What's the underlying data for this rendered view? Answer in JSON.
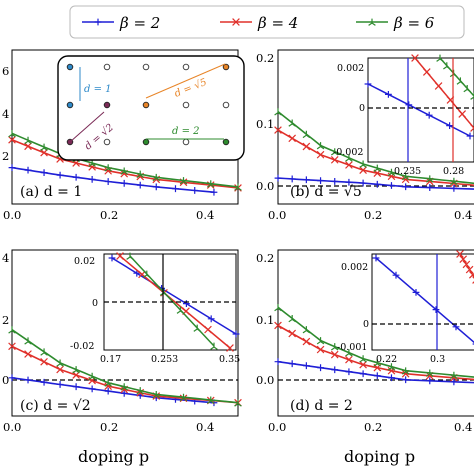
{
  "colors": {
    "beta2": "#1f1fd6",
    "beta4": "#e0302a",
    "beta6": "#2e8b2e",
    "mapblue": "#2f8ac9",
    "maporange": "#e88528",
    "mappurple": "#7a2a56",
    "mapgreen": "#2e8b2e"
  },
  "legend": {
    "entries": [
      "β = 2",
      "β = 4",
      "β = 6"
    ]
  },
  "xlabel_left": "doping p",
  "xlabel_right": "doping p",
  "panels": {
    "a": {
      "label": "(a) d = 1"
    },
    "b": {
      "label": "(b) d = √5"
    },
    "c": {
      "label": "(c) d = √2"
    },
    "d": {
      "label": "(d) d = 2"
    }
  },
  "lattice_inset": {
    "labels": [
      "d = 1",
      "d = √5",
      "d = √2",
      "d = 2"
    ]
  },
  "chart_data": [
    {
      "type": "line",
      "panel": "a",
      "title": "(a) d = 1",
      "x_ticks": [
        "0.0",
        "0.2",
        "0.4"
      ],
      "y_ticks": [
        "2",
        "4",
        "6"
      ],
      "xlim": [
        0,
        0.47
      ],
      "series": [
        {
          "name": "β = 2",
          "x": [
            0.0,
            0.1,
            0.2,
            0.3,
            0.42
          ],
          "y": [
            1.7,
            1.35,
            1.05,
            0.8,
            0.55
          ]
        },
        {
          "name": "β = 4",
          "x": [
            0.0,
            0.1,
            0.2,
            0.3,
            0.47
          ],
          "y": [
            3.0,
            2.1,
            1.55,
            1.15,
            0.75
          ]
        },
        {
          "name": "β = 6",
          "x": [
            0.0,
            0.1,
            0.2,
            0.3,
            0.47
          ],
          "y": [
            3.3,
            2.35,
            1.7,
            1.25,
            0.8
          ]
        }
      ]
    },
    {
      "type": "line",
      "panel": "b",
      "title": "(b) d = √5",
      "x_ticks": [
        "0.0",
        "0.2",
        "0.4"
      ],
      "y_ticks": [
        "0.0",
        "0.1",
        "0.2"
      ],
      "xlim": [
        0,
        0.47
      ],
      "series": [
        {
          "name": "β = 2",
          "x": [
            0.0,
            0.1,
            0.2,
            0.3,
            0.47
          ],
          "y": [
            0.012,
            0.008,
            0.004,
            -0.002,
            -0.006
          ]
        },
        {
          "name": "β = 4",
          "x": [
            0.0,
            0.1,
            0.2,
            0.3,
            0.47
          ],
          "y": [
            0.09,
            0.05,
            0.025,
            0.01,
            0.0
          ]
        },
        {
          "name": "β = 6",
          "x": [
            0.0,
            0.1,
            0.2,
            0.3,
            0.47
          ],
          "y": [
            0.12,
            0.065,
            0.035,
            0.015,
            0.003
          ]
        }
      ],
      "inset": {
        "x_ticks": [
          "0.235",
          "0.28"
        ],
        "y_ticks": [
          "0.002",
          "0",
          "-0.002"
        ],
        "vlines": [
          0.235,
          0.28
        ]
      }
    },
    {
      "type": "line",
      "panel": "c",
      "title": "(c) d = √2",
      "x_ticks": [
        "0.0",
        "0.2",
        "0.4"
      ],
      "y_ticks": [
        "0",
        "2",
        "4"
      ],
      "xlim": [
        0,
        0.47
      ],
      "series": [
        {
          "name": "β = 2",
          "x": [
            0.0,
            0.1,
            0.2,
            0.3,
            0.42
          ],
          "y": [
            0.55,
            0.35,
            0.15,
            -0.05,
            -0.2
          ]
        },
        {
          "name": "β = 4",
          "x": [
            0.0,
            0.1,
            0.2,
            0.3,
            0.47
          ],
          "y": [
            1.5,
            0.8,
            0.3,
            0.0,
            -0.2
          ]
        },
        {
          "name": "β = 6",
          "x": [
            0.0,
            0.1,
            0.2,
            0.3,
            0.47
          ],
          "y": [
            2.0,
            1.0,
            0.4,
            0.05,
            -0.2
          ]
        }
      ],
      "inset": {
        "x_ticks": [
          "0.17",
          "0.253",
          "0.35"
        ],
        "y_ticks": [
          "0.02",
          "0",
          "-0.02"
        ],
        "vlines": [
          0.253
        ]
      }
    },
    {
      "type": "line",
      "panel": "d",
      "title": "(d) d = 2",
      "x_ticks": [
        "0.0",
        "0.2",
        "0.4"
      ],
      "y_ticks": [
        "0.0",
        "0.1",
        "0.2"
      ],
      "xlim": [
        0,
        0.47
      ],
      "series": [
        {
          "name": "β = 2",
          "x": [
            0.0,
            0.1,
            0.2,
            0.3,
            0.47
          ],
          "y": [
            0.03,
            0.02,
            0.01,
            0.0,
            -0.005
          ]
        },
        {
          "name": "β = 4",
          "x": [
            0.0,
            0.1,
            0.2,
            0.3,
            0.47
          ],
          "y": [
            0.09,
            0.05,
            0.025,
            0.01,
            0.0
          ]
        },
        {
          "name": "β = 6",
          "x": [
            0.0,
            0.1,
            0.2,
            0.3,
            0.47
          ],
          "y": [
            0.12,
            0.065,
            0.035,
            0.015,
            0.004
          ]
        }
      ],
      "inset": {
        "x_ticks": [
          "0.22",
          "0.3"
        ],
        "y_ticks": [
          "0.002",
          "0",
          "-0.001"
        ],
        "vlines": [
          0.3
        ]
      }
    }
  ]
}
